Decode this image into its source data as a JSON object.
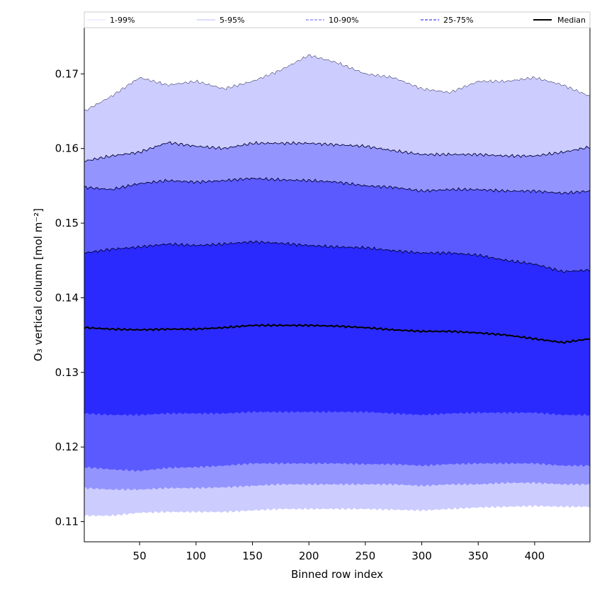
{
  "chart_data": {
    "type": "area",
    "xlabel": "Binned row index",
    "ylabel": "O₃ vertical column [mol m⁻²]",
    "xlim": [
      1,
      449
    ],
    "ylim": [
      0.1073,
      0.1762
    ],
    "x_ticks": [
      50,
      100,
      150,
      200,
      250,
      300,
      350,
      400
    ],
    "y_ticks": [
      0.11,
      0.12,
      0.13,
      0.14,
      0.15,
      0.16,
      0.17
    ],
    "y_tick_labels": [
      "0.11",
      "0.12",
      "0.13",
      "0.14",
      "0.15",
      "0.16",
      "0.17"
    ],
    "legend": {
      "placement": "top, outside plot",
      "entries": [
        {
          "label": "1-99%",
          "color": "#d8d8ff",
          "style": "solid-thin"
        },
        {
          "label": "5-95%",
          "color": "#a0a0ff",
          "style": "solid-thin"
        },
        {
          "label": "10-90%",
          "color": "#8080ff",
          "style": "dashed"
        },
        {
          "label": "25-75%",
          "color": "#4040ff",
          "style": "dashed"
        },
        {
          "label": "Median",
          "color": "#000000",
          "style": "solid-thick"
        }
      ]
    },
    "x": [
      1,
      25,
      50,
      75,
      100,
      125,
      150,
      175,
      200,
      225,
      250,
      275,
      300,
      325,
      350,
      375,
      400,
      425,
      449
    ],
    "series": [
      {
        "name": "1-99%",
        "fill": "#ccccff",
        "lower": [
          0.1108,
          0.1108,
          0.1112,
          0.1113,
          0.1113,
          0.1113,
          0.1115,
          0.1117,
          0.1117,
          0.1117,
          0.1117,
          0.1116,
          0.1115,
          0.1117,
          0.1119,
          0.112,
          0.1121,
          0.112,
          0.112
        ],
        "upper": [
          0.165,
          0.167,
          0.1695,
          0.1685,
          0.169,
          0.168,
          0.169,
          0.1705,
          0.1725,
          0.1715,
          0.17,
          0.1695,
          0.168,
          0.1675,
          0.169,
          0.169,
          0.1695,
          0.1685,
          0.167
        ]
      },
      {
        "name": "5-95%",
        "fill": "#9494ff",
        "lower": [
          0.1145,
          0.1143,
          0.1143,
          0.1145,
          0.1145,
          0.1146,
          0.1148,
          0.115,
          0.115,
          0.115,
          0.115,
          0.115,
          0.1148,
          0.115,
          0.115,
          0.1152,
          0.1152,
          0.115,
          0.115
        ],
        "upper": [
          0.1583,
          0.159,
          0.1595,
          0.1608,
          0.1603,
          0.16,
          0.1607,
          0.1607,
          0.1607,
          0.1605,
          0.1603,
          0.1597,
          0.1592,
          0.1592,
          0.1592,
          0.159,
          0.159,
          0.1595,
          0.1602
        ]
      },
      {
        "name": "10-90%",
        "fill": "#5a5aff",
        "lower": [
          0.1173,
          0.117,
          0.1168,
          0.1172,
          0.1173,
          0.1175,
          0.1178,
          0.1178,
          0.1178,
          0.1178,
          0.1177,
          0.1177,
          0.1175,
          0.1177,
          0.1178,
          0.1178,
          0.1178,
          0.1175,
          0.1175
        ],
        "upper": [
          0.1548,
          0.1545,
          0.1553,
          0.1557,
          0.1555,
          0.1557,
          0.156,
          0.1558,
          0.1557,
          0.1555,
          0.155,
          0.1548,
          0.1543,
          0.1545,
          0.1545,
          0.1543,
          0.1543,
          0.154,
          0.1543
        ]
      },
      {
        "name": "25-75%",
        "fill": "#2a2aff",
        "lower": [
          0.1245,
          0.1243,
          0.1243,
          0.1245,
          0.1245,
          0.1245,
          0.1247,
          0.1247,
          0.1247,
          0.1247,
          0.1247,
          0.1245,
          0.1243,
          0.1245,
          0.1246,
          0.1246,
          0.1246,
          0.1243,
          0.1243
        ],
        "upper": [
          0.146,
          0.1465,
          0.1468,
          0.1472,
          0.147,
          0.1472,
          0.1475,
          0.1473,
          0.147,
          0.1468,
          0.1467,
          0.1463,
          0.146,
          0.146,
          0.1457,
          0.145,
          0.1445,
          0.1435,
          0.1437
        ]
      },
      {
        "name": "Median",
        "color": "#000000",
        "values": [
          0.136,
          0.1358,
          0.1357,
          0.1358,
          0.1358,
          0.136,
          0.1363,
          0.1363,
          0.1363,
          0.1362,
          0.136,
          0.1357,
          0.1355,
          0.1355,
          0.1353,
          0.135,
          0.1345,
          0.134,
          0.1345
        ]
      }
    ]
  }
}
